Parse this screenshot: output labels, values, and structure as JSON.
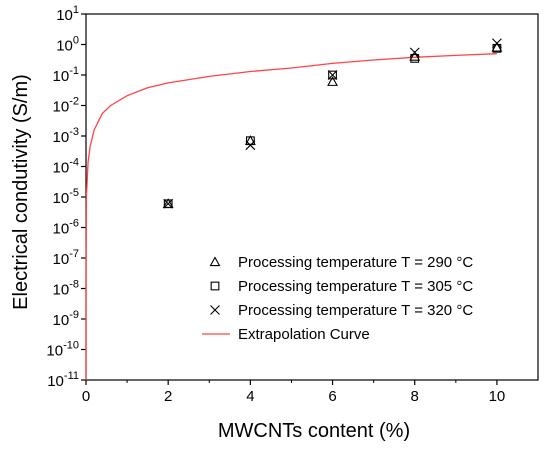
{
  "chart_data": {
    "type": "scatter",
    "xlabel": "MWCNTs content (%)",
    "ylabel": "Electrical condutivity (S/m)",
    "xlim": [
      0,
      11
    ],
    "ylim_log10": [
      -11,
      1
    ],
    "y_scale": "log",
    "x_ticks": [
      "0",
      "2",
      "4",
      "6",
      "8",
      "10"
    ],
    "y_ticks": [
      {
        "base": "10",
        "exp": "1"
      },
      {
        "base": "10",
        "exp": "0"
      },
      {
        "base": "10",
        "exp": "-1"
      },
      {
        "base": "10",
        "exp": "-2"
      },
      {
        "base": "10",
        "exp": "-3"
      },
      {
        "base": "10",
        "exp": "-4"
      },
      {
        "base": "10",
        "exp": "-5"
      },
      {
        "base": "10",
        "exp": "-6"
      },
      {
        "base": "10",
        "exp": "-7"
      },
      {
        "base": "10",
        "exp": "-8"
      },
      {
        "base": "10",
        "exp": "-9"
      },
      {
        "base": "10",
        "exp": "-10"
      },
      {
        "base": "10",
        "exp": "-11"
      }
    ],
    "legend_position": "bottom-right",
    "grid": false,
    "series": [
      {
        "name": "Processing temperature T = 290 °C",
        "marker": "triangle",
        "x": [
          2,
          4,
          6,
          8,
          10
        ],
        "y": [
          6e-06,
          0.0007,
          0.06,
          0.4,
          0.8
        ]
      },
      {
        "name": "Processing temperature T = 305 °C",
        "marker": "square",
        "x": [
          2,
          4,
          6,
          8,
          10
        ],
        "y": [
          6e-06,
          0.0007,
          0.1,
          0.35,
          0.75
        ]
      },
      {
        "name": "Processing temperature T = 320 °C",
        "marker": "cross",
        "x": [
          2,
          4,
          6,
          8,
          10
        ],
        "y": [
          6e-06,
          0.0005,
          0.1,
          0.55,
          1.1
        ]
      },
      {
        "name": "Extrapolation Curve",
        "marker": "line",
        "color": "#ff4444",
        "x": [
          0.0001,
          0.001,
          0.01,
          0.05,
          0.1,
          0.2,
          0.4,
          0.6,
          1,
          1.5,
          2,
          3,
          4,
          5,
          6,
          7,
          8,
          9,
          10
        ],
        "y": [
          1e-11,
          1e-08,
          1e-05,
          0.00014,
          0.00045,
          0.0016,
          0.0055,
          0.01,
          0.021,
          0.038,
          0.055,
          0.09,
          0.13,
          0.17,
          0.24,
          0.31,
          0.38,
          0.44,
          0.5
        ]
      }
    ]
  }
}
